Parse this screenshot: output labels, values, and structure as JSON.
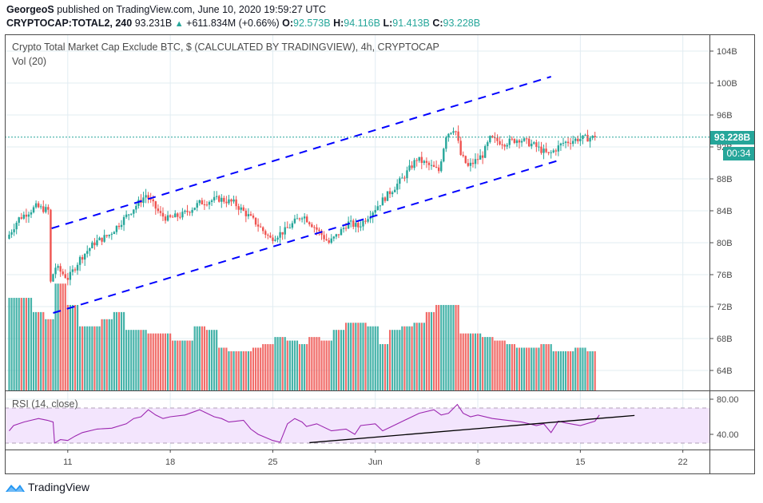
{
  "header": {
    "author": "GeorgeoS",
    "published_text": "published on TradingView.com, June 10, 2020 19:59:27 UTC",
    "symbol": "CRYPTOCAP:TOTAL2, 240",
    "last_price": "93.231B",
    "change_icon": "triangle-up-icon",
    "change": "+611.834M (+0.66%)",
    "open_label": "O:",
    "open": "92.573B",
    "high_label": "H:",
    "high": "94.116B",
    "low_label": "L:",
    "low": "91.413B",
    "close_label": "C:",
    "close": "93.228B"
  },
  "legend": {
    "title": "Crypto Total Market Cap Exclude BTC, $ (CALCULATED BY TRADINGVIEW), 4h, CRYPTOCAP",
    "volume": "Vol (20)",
    "rsi": "RSI (14, close)"
  },
  "price_axis": {
    "current_price": "93.228B",
    "countdown": "00:34"
  },
  "brand": {
    "logo_icon": "tradingview-logo-icon",
    "name": "TradingView"
  },
  "colors": {
    "up": "#26a69a",
    "down": "#ef5350",
    "channel": "#0000ff",
    "rsi_line": "#9c27b0",
    "rsi_band": "#f3e5fd",
    "trendline": "#000000",
    "grid": "#e1ecf2"
  },
  "chart_data": [
    {
      "type": "candlestick",
      "title": "Crypto Total Market Cap Exclude BTC, $ (CALCULATED BY TRADINGVIEW), 4h, CRYPTOCAP",
      "interval": "4h",
      "ylabel": "",
      "ylim": [
        61,
        106
      ],
      "yticks": [
        64,
        68,
        72,
        76,
        80,
        84,
        88,
        92,
        96,
        100,
        104
      ],
      "ytick_labels": [
        "64B",
        "68B",
        "72B",
        "76B",
        "80B",
        "84B",
        "88B",
        "92B",
        "96B",
        "100B",
        "104B"
      ],
      "xticks": [
        "11",
        "18",
        "25",
        "Jun",
        "8",
        "15",
        "22"
      ],
      "x_range_days": [
        "May 7",
        "June 23"
      ],
      "close_path": {
        "day_offsets": [
          0,
          0.8,
          2,
          2.9,
          3.0,
          3.3,
          4.2,
          5,
          6,
          7,
          8,
          9.5,
          10.5,
          11,
          12,
          13.2,
          14.5,
          15.5,
          16,
          17,
          18,
          19,
          20.2,
          21,
          22,
          22.6,
          23.3,
          24,
          25,
          26,
          27,
          28,
          29.5,
          30,
          30.6,
          31,
          31.5,
          32.5,
          33,
          34,
          35,
          36,
          37,
          38,
          39,
          40.2
        ],
        "values": [
          80.5,
          83,
          84.5,
          84,
          75,
          77,
          75.5,
          78,
          80,
          81,
          83,
          86,
          83.5,
          83,
          83.5,
          85,
          85.5,
          85,
          84.2,
          82.5,
          80.5,
          81.5,
          83.5,
          82,
          80,
          81,
          82.5,
          82,
          84,
          86,
          88,
          90.5,
          89,
          93.5,
          94.5,
          91,
          89.5,
          91,
          93,
          92.5,
          93,
          92.2,
          91,
          92.5,
          93,
          93.2
        ]
      },
      "last_close": 93.228,
      "current_price_label": "93.228B"
    },
    {
      "type": "bar",
      "title": "Vol (20)",
      "series_note": "volume bars colored by candle direction",
      "relative_levels": [
        0.26,
        0.26,
        0.22,
        0.2,
        0.3,
        0.24,
        0.18,
        0.18,
        0.2,
        0.22,
        0.17,
        0.17,
        0.16,
        0.16,
        0.14,
        0.14,
        0.18,
        0.17,
        0.12,
        0.11,
        0.11,
        0.12,
        0.13,
        0.15,
        0.14,
        0.13,
        0.15,
        0.14,
        0.17,
        0.19,
        0.19,
        0.18,
        0.13,
        0.17,
        0.18,
        0.19,
        0.22,
        0.24,
        0.24,
        0.16,
        0.16,
        0.15,
        0.14,
        0.13,
        0.12,
        0.12,
        0.13,
        0.11,
        0.11,
        0.12,
        0.11
      ]
    },
    {
      "type": "line",
      "title": "RSI (14, close)",
      "ylim": [
        20,
        85
      ],
      "yticks": [
        40,
        80
      ],
      "ytick_labels": [
        "40.00",
        "80.00"
      ],
      "band": [
        30,
        70
      ],
      "day_offsets": [
        0,
        0.3,
        1,
        1.5,
        2,
        2.6,
        3.0,
        3.1,
        3.5,
        4,
        4.5,
        5,
        6,
        7,
        8,
        8.5,
        9,
        9.5,
        10,
        10.5,
        11,
        12,
        13,
        14,
        14.5,
        15,
        16,
        16.5,
        17,
        18,
        18.5,
        19,
        19.5,
        20,
        20.3,
        21,
        22,
        23,
        23.6,
        24,
        25,
        25.5,
        26,
        27,
        27.5,
        28,
        29,
        29.5,
        30,
        30.6,
        31,
        31.5,
        32,
        33,
        34,
        35,
        36,
        36.5,
        37,
        37.5,
        38,
        39,
        40,
        40.3
      ],
      "values": [
        44,
        50,
        54,
        56,
        58,
        56,
        54,
        30,
        34,
        33,
        38,
        42,
        46,
        47,
        52,
        58,
        60,
        68,
        62,
        58,
        60,
        62,
        68,
        60,
        58,
        54,
        56,
        46,
        40,
        33,
        31,
        52,
        58,
        54,
        49,
        52,
        44,
        46,
        40,
        50,
        52,
        44,
        48,
        56,
        60,
        64,
        68,
        62,
        64,
        74,
        64,
        60,
        62,
        58,
        56,
        54,
        50,
        52,
        42,
        55,
        53,
        50,
        55,
        62
      ],
      "trendline": {
        "from": [
          20.5,
          30.5
        ],
        "to": [
          42.7,
          61.5
        ]
      }
    }
  ],
  "channel": {
    "upper": {
      "from": [
        2.9,
        81.8
      ],
      "to": [
        37.0,
        100.8
      ]
    },
    "lower": {
      "from": [
        3.0,
        71.2
      ],
      "to": [
        37.5,
        90.3
      ]
    }
  }
}
